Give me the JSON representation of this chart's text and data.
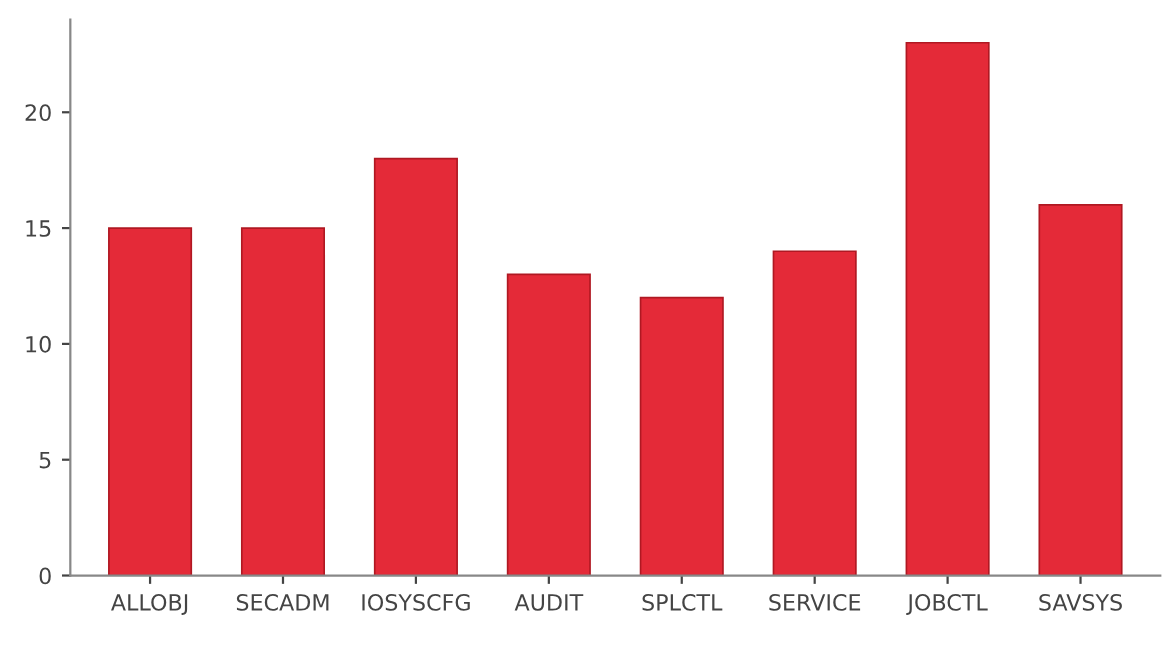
{
  "chart_data": {
    "type": "bar",
    "categories": [
      "ALLOBJ",
      "SECADM",
      "IOSYSCFG",
      "AUDIT",
      "SPLCTL",
      "SERVICE",
      "JOBCTL",
      "SAVSYS"
    ],
    "values": [
      15,
      15,
      18,
      13,
      12,
      14,
      23,
      16
    ],
    "color": "#e42a38",
    "ylim": [
      0,
      24
    ],
    "yticks": [
      0,
      5,
      10,
      15,
      20
    ],
    "grid": false
  }
}
